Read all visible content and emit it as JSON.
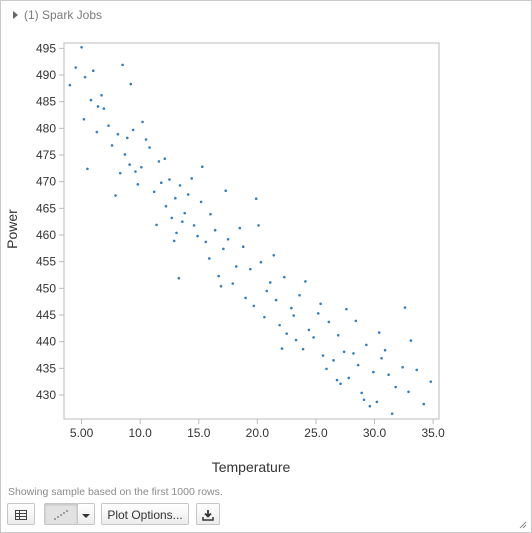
{
  "jobs": {
    "label": "(1) Spark Jobs"
  },
  "footer": {
    "note": "Showing sample based on the first 1000 rows."
  },
  "toolbar": {
    "table_icon": "table-icon",
    "chart_icon": "scatter-chart-icon",
    "dropdown_icon": "chevron-down-icon",
    "plot_options_label": "Plot Options...",
    "download_icon": "download-icon"
  },
  "colors": {
    "point": "#2f7fc1",
    "axis": "#bbbbbb",
    "text": "#333333"
  },
  "chart_data": {
    "type": "scatter",
    "title": "",
    "xlabel": "Temperature",
    "ylabel": "Power",
    "xlim": [
      3.5,
      35.5
    ],
    "ylim": [
      425.5,
      496
    ],
    "xticks": [
      5.0,
      10.0,
      15.0,
      20.0,
      25.0,
      30.0,
      35.0
    ],
    "xtick_labels": [
      "5.00",
      "10.0",
      "15.0",
      "20.0",
      "25.0",
      "30.0",
      "35.0"
    ],
    "yticks": [
      430,
      435,
      440,
      445,
      450,
      455,
      460,
      465,
      470,
      475,
      480,
      485,
      490,
      495
    ],
    "grid": false,
    "series": [
      {
        "x": [
          5.0,
          5.3,
          5.8,
          6.0,
          6.4,
          4.5,
          5.2,
          6.7,
          7.3,
          8.1,
          4.0,
          6.3,
          5.5,
          7.6,
          8.7,
          9.4,
          10.2,
          10.8,
          11.6,
          8.3,
          9.1,
          9.8,
          10.5,
          7.9,
          12.1,
          11.2,
          9.6,
          8.9,
          10.1,
          11.8,
          12.5,
          13.0,
          12.7,
          13.4,
          14.1,
          13.8,
          15.2,
          14.6,
          13.1,
          16.0,
          15.6,
          14.4,
          12.2,
          13.6,
          14.9,
          16.4,
          17.1,
          15.9,
          17.5,
          18.2,
          16.7,
          18.8,
          19.4,
          17.9,
          19.0,
          20.3,
          21.1,
          19.7,
          20.8,
          21.6,
          22.3,
          20.6,
          22.9,
          23.6,
          21.9,
          22.5,
          23.1,
          24.4,
          25.2,
          23.9,
          24.8,
          26.1,
          25.6,
          26.9,
          27.4,
          25.9,
          26.5,
          28.2,
          27.8,
          28.6,
          29.3,
          27.1,
          29.9,
          30.6,
          28.9,
          31.2,
          30.2,
          31.8,
          32.4,
          29.6,
          30.9,
          32.9,
          33.6,
          34.2,
          31.5,
          18.5,
          21.4,
          23.3,
          26.8,
          29.1,
          15.3,
          11.4,
          9.2,
          13.3,
          19.9,
          24.1,
          27.6,
          30.4,
          32.6,
          34.8,
          12.9,
          16.9,
          22.1,
          20.1,
          17.3,
          25.4,
          28.4,
          33.1,
          6.9,
          8.5
        ],
        "y": [
          495.2,
          489.6,
          485.3,
          490.8,
          484.1,
          491.4,
          481.7,
          486.2,
          480.5,
          478.9,
          488.1,
          479.3,
          472.4,
          476.8,
          475.1,
          479.7,
          481.2,
          476.4,
          473.8,
          471.6,
          473.2,
          469.5,
          477.9,
          467.4,
          474.3,
          468.1,
          471.9,
          478.2,
          472.7,
          469.8,
          470.4,
          466.9,
          463.2,
          469.3,
          467.6,
          464.1,
          466.2,
          461.8,
          460.4,
          463.9,
          458.7,
          470.6,
          465.4,
          462.5,
          459.8,
          460.9,
          457.4,
          455.6,
          459.2,
          454.1,
          452.3,
          457.8,
          453.6,
          450.9,
          448.2,
          454.9,
          451.1,
          446.7,
          449.5,
          447.8,
          452.1,
          444.6,
          446.3,
          448.7,
          443.1,
          441.5,
          444.9,
          442.2,
          445.3,
          438.6,
          440.8,
          443.7,
          437.4,
          441.2,
          438.1,
          434.9,
          436.5,
          437.8,
          433.2,
          435.6,
          439.4,
          432.1,
          434.3,
          436.9,
          430.4,
          433.8,
          428.7,
          431.5,
          435.2,
          427.9,
          438.4,
          430.6,
          434.7,
          428.3,
          426.5,
          461.3,
          456.2,
          440.3,
          432.8,
          429.1,
          472.8,
          461.9,
          488.3,
          451.9,
          466.8,
          451.3,
          446.1,
          441.7,
          446.4,
          432.5,
          458.9,
          450.4,
          438.7,
          461.8,
          468.3,
          447.1,
          443.9,
          440.2,
          483.7,
          491.9
        ]
      }
    ]
  }
}
